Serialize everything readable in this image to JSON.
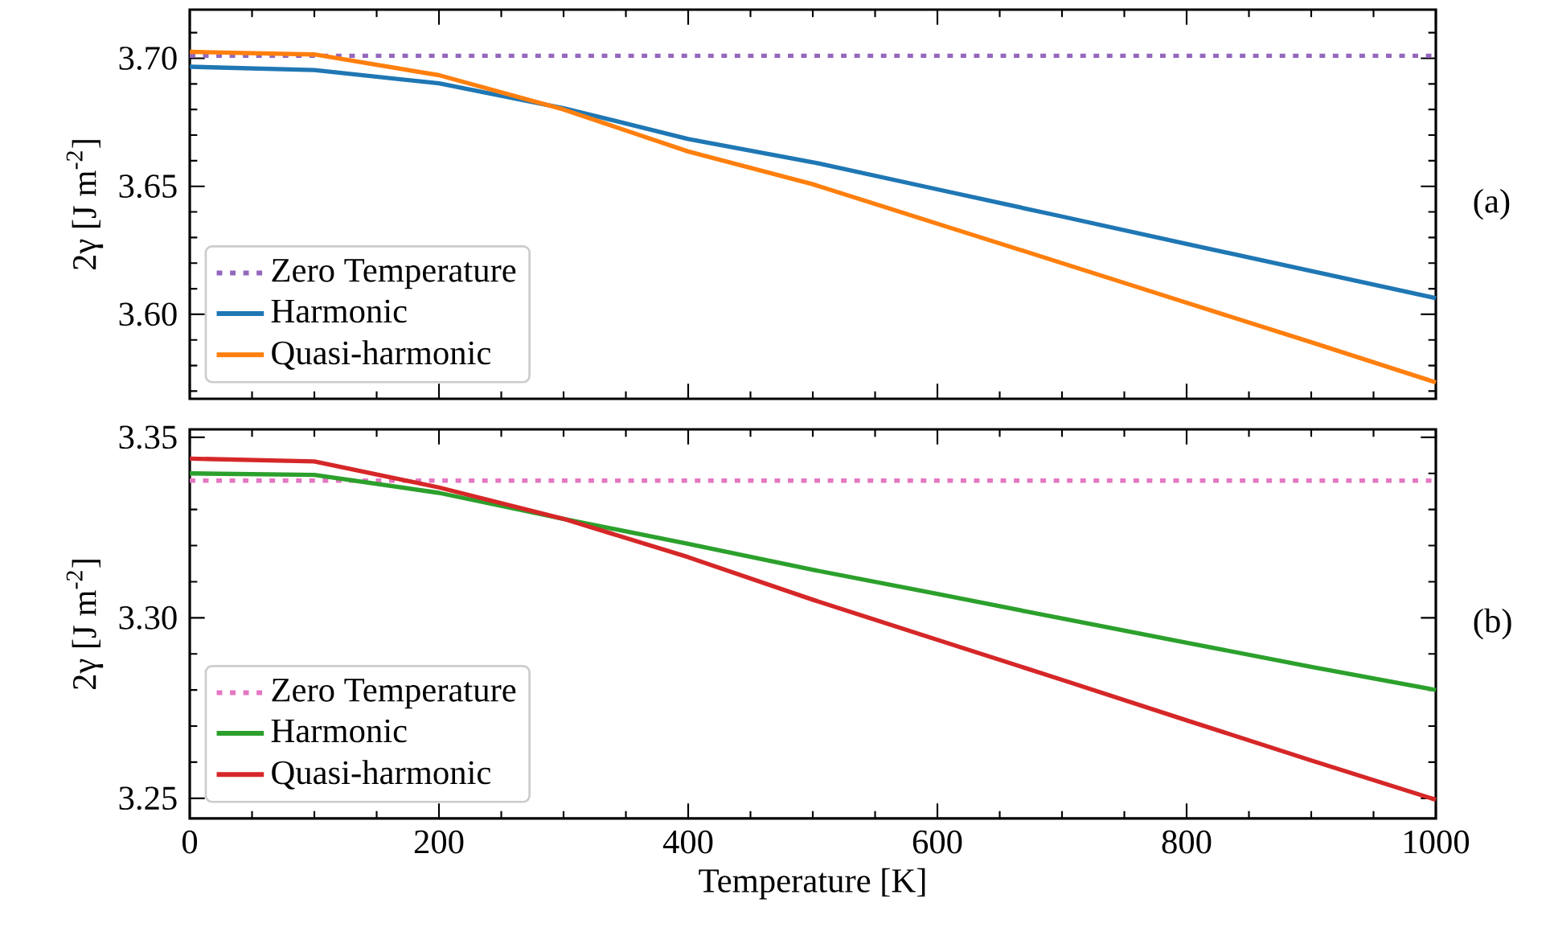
{
  "chart_data": [
    {
      "type": "line",
      "ylabel": "2γ [J m$^{-2}$]",
      "annotations": [
        "(a)"
      ],
      "x": [
        0,
        100,
        200,
        300,
        400,
        500,
        600,
        700,
        800,
        900,
        1000
      ],
      "series": [
        {
          "name": "Zero Temperature",
          "color": "#9467bd",
          "line_style": "dotted",
          "values": [
            3.701,
            3.701,
            3.701,
            3.701,
            3.701,
            3.701,
            3.701,
            3.701,
            3.701,
            3.701,
            3.701
          ]
        },
        {
          "name": "Harmonic",
          "color": "#1f77b4",
          "line_style": "solid",
          "values": [
            3.6967,
            3.6954,
            3.6902,
            3.6805,
            3.6685,
            3.6594,
            3.6488,
            3.6382,
            3.6275,
            3.6169,
            3.6063
          ]
        },
        {
          "name": "Quasi-harmonic",
          "color": "#ff7f0e",
          "line_style": "solid",
          "values": [
            3.7025,
            3.7015,
            3.6934,
            3.68,
            3.6636,
            3.6508,
            3.6354,
            3.62,
            3.6045,
            3.5891,
            3.5734
          ]
        }
      ],
      "xlim": [
        0,
        1000
      ],
      "ylim": [
        3.567,
        3.719
      ],
      "xticks": [
        0,
        {
          "value": 50,
          "label": null
        },
        {
          "value": 100,
          "label": null
        },
        {
          "value": 150,
          "label": null
        },
        200,
        {
          "value": 250,
          "label": null
        },
        {
          "value": 300,
          "label": null
        },
        {
          "value": 350,
          "label": null
        },
        400,
        {
          "value": 450,
          "label": null
        },
        {
          "value": 500,
          "label": null
        },
        {
          "value": 550,
          "label": null
        },
        600,
        {
          "value": 650,
          "label": null
        },
        {
          "value": 700,
          "label": null
        },
        {
          "value": 750,
          "label": null
        },
        800,
        {
          "value": 850,
          "label": null
        },
        {
          "value": 900,
          "label": null
        },
        {
          "value": 950,
          "label": null
        },
        1000
      ],
      "yticks": [
        {
          "value": 3.57,
          "label": null
        },
        {
          "value": 3.58,
          "label": null
        },
        {
          "value": 3.59,
          "label": null
        },
        {
          "value": 3.6,
          "label": "3.60"
        },
        {
          "value": 3.61,
          "label": null
        },
        {
          "value": 3.62,
          "label": null
        },
        {
          "value": 3.63,
          "label": null
        },
        {
          "value": 3.64,
          "label": null
        },
        3.65,
        {
          "value": 3.66,
          "label": null
        },
        {
          "value": 3.67,
          "label": null
        },
        {
          "value": 3.68,
          "label": null
        },
        {
          "value": 3.69,
          "label": null
        },
        {
          "value": 3.7,
          "label": "3.70"
        },
        {
          "value": 3.71,
          "label": null
        }
      ],
      "tick_labels": "y",
      "grid": false,
      "legend": "bottom left",
      "marker": "none"
    },
    {
      "type": "line",
      "xlabel": "Temperature [K]",
      "ylabel": "2γ [J m$^{-2}$]",
      "annotations": [
        "(b)"
      ],
      "x": [
        0,
        100,
        200,
        300,
        400,
        500,
        600,
        700,
        800,
        900,
        1000
      ],
      "series": [
        {
          "name": "Zero Temperature",
          "color": "#e377c2",
          "line_style": "dotted",
          "values": [
            3.338,
            3.338,
            3.338,
            3.338,
            3.338,
            3.338,
            3.338,
            3.338,
            3.338,
            3.338,
            3.338
          ]
        },
        {
          "name": "Harmonic",
          "color": "#2ca02c",
          "line_style": "solid",
          "values": [
            3.34,
            3.3396,
            3.3346,
            3.3274,
            3.3205,
            3.3133,
            3.3066,
            3.2998,
            3.2931,
            3.2864,
            3.28
          ]
        },
        {
          "name": "Quasi-harmonic",
          "color": "#d62728",
          "line_style": "solid",
          "values": [
            3.3441,
            3.3433,
            3.3361,
            3.3274,
            3.3168,
            3.305,
            3.2939,
            3.2828,
            3.2716,
            3.2605,
            3.2496
          ]
        }
      ],
      "xlim": [
        0,
        1000
      ],
      "ylim": [
        3.2444,
        3.3522
      ],
      "xticks": [
        0,
        {
          "value": 50,
          "label": null
        },
        {
          "value": 100,
          "label": null
        },
        {
          "value": 150,
          "label": null
        },
        200,
        {
          "value": 250,
          "label": null
        },
        {
          "value": 300,
          "label": null
        },
        {
          "value": 350,
          "label": null
        },
        400,
        {
          "value": 450,
          "label": null
        },
        {
          "value": 500,
          "label": null
        },
        {
          "value": 550,
          "label": null
        },
        600,
        {
          "value": 650,
          "label": null
        },
        {
          "value": 700,
          "label": null
        },
        {
          "value": 750,
          "label": null
        },
        800,
        {
          "value": 850,
          "label": null
        },
        {
          "value": 900,
          "label": null
        },
        {
          "value": 950,
          "label": null
        },
        1000
      ],
      "yticks": [
        3.25,
        {
          "value": 3.26,
          "label": null
        },
        {
          "value": 3.27,
          "label": null
        },
        {
          "value": 3.28,
          "label": null
        },
        {
          "value": 3.29,
          "label": null
        },
        {
          "value": 3.3,
          "label": "3.30"
        },
        {
          "value": 3.31,
          "label": null
        },
        {
          "value": 3.32,
          "label": null
        },
        {
          "value": 3.33,
          "label": null
        },
        {
          "value": 3.34,
          "label": null
        },
        3.35
      ],
      "grid": false,
      "legend": "bottom left",
      "marker": "none"
    }
  ]
}
